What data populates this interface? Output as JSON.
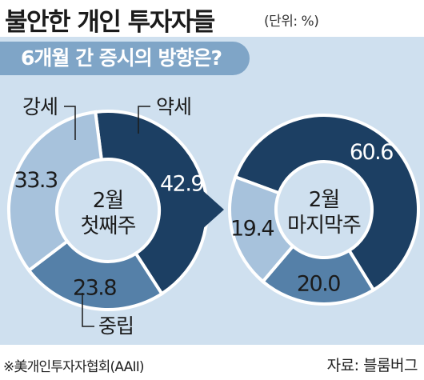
{
  "title": "불안한 개인 투자자들",
  "unit": "(단위: %)",
  "question": "6개월 간 증시의 방향은?",
  "source": "자료: 블룸버그",
  "footnote": "※美개인투자자협회(AAII)",
  "colors": {
    "panel_bg": "#cfe0ef",
    "bullish": "#a7c2dc",
    "bearish": "#1c3f63",
    "neutral": "#5580a8",
    "question_bg": "#7fa5c7",
    "arrow": "#1c3f63"
  },
  "chart_data": [
    {
      "type": "pie",
      "center_label": [
        "2월",
        "첫째주"
      ],
      "categories": [
        "강세",
        "약세",
        "중립"
      ],
      "values": [
        33.3,
        42.9,
        23.8
      ]
    },
    {
      "type": "pie",
      "center_label": [
        "2월",
        "마지막주"
      ],
      "categories": [
        "강세",
        "약세",
        "중립"
      ],
      "values": [
        19.4,
        60.6,
        20.0
      ]
    }
  ]
}
